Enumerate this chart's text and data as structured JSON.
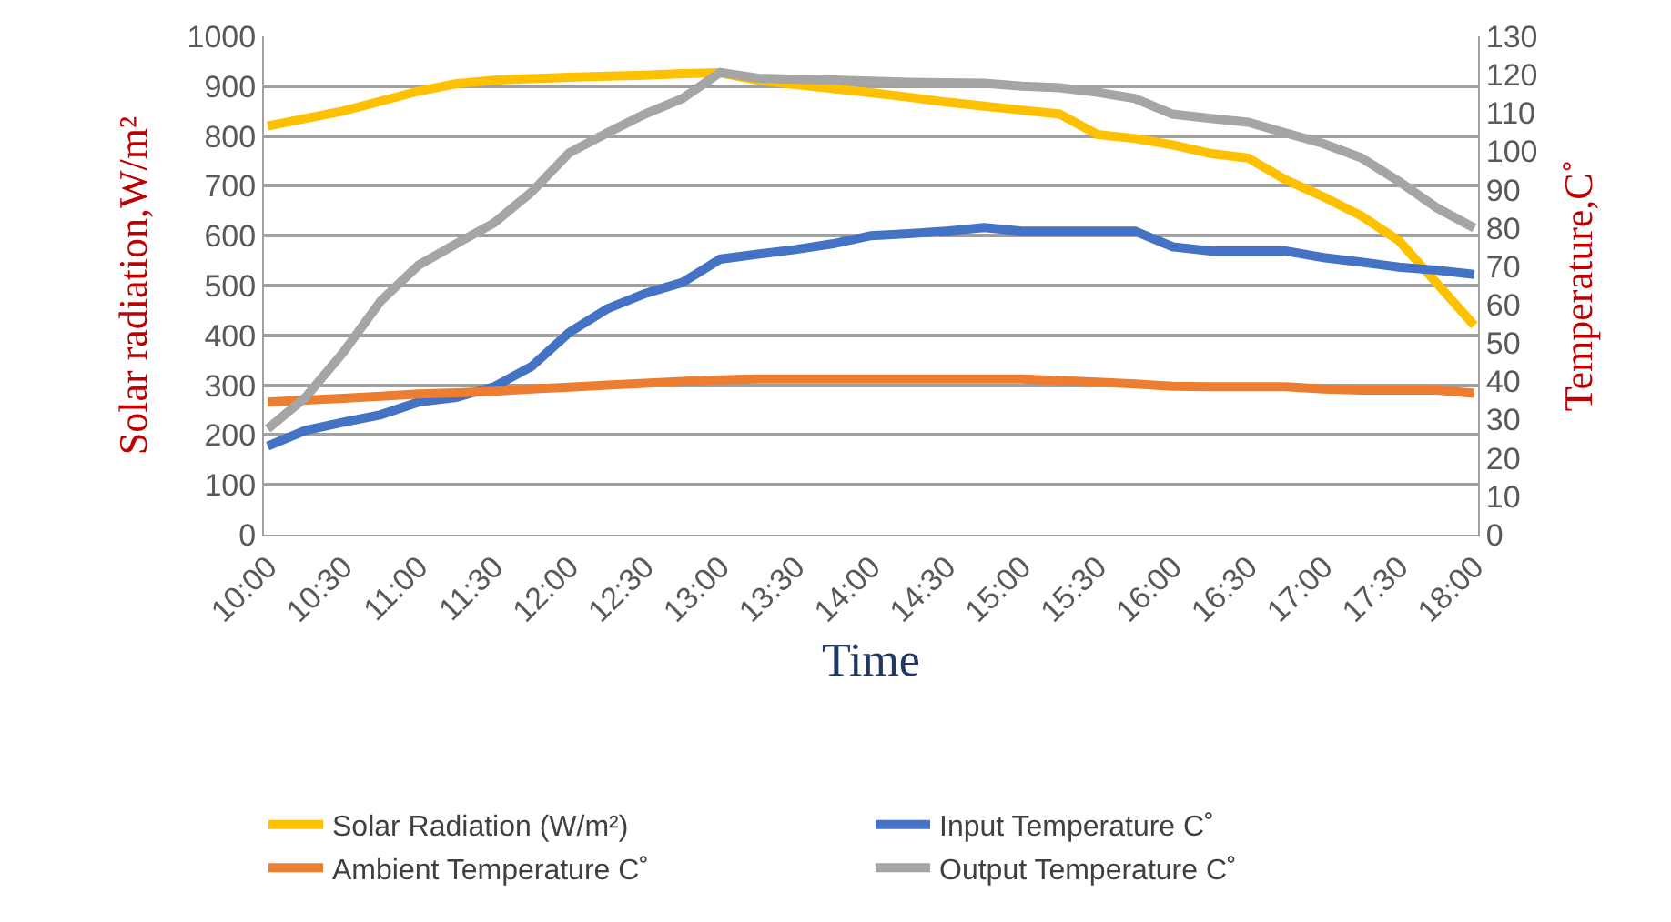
{
  "chart_data": {
    "type": "line",
    "xlabel": "Time",
    "ylabel": "Solar radiation,W/m²",
    "y2label": "Temperature,C˚",
    "categories": [
      "10:00",
      null,
      "10:30",
      null,
      "11:00",
      null,
      "11:30",
      null,
      "12:00",
      null,
      "12:30",
      null,
      "13:00",
      null,
      "13:30",
      null,
      "14:00",
      null,
      "14:30",
      null,
      "15:00",
      null,
      "15:30",
      null,
      "16:00",
      null,
      "16:30",
      null,
      "17:00",
      null,
      "17:30",
      null,
      "18:00"
    ],
    "ylim": [
      0,
      1000
    ],
    "yticks": [
      0,
      100,
      200,
      300,
      400,
      500,
      600,
      700,
      800,
      900,
      1000
    ],
    "y2lim": [
      0,
      130
    ],
    "y2ticks": [
      0,
      10,
      20,
      30,
      40,
      50,
      60,
      70,
      80,
      90,
      100,
      110,
      120,
      130
    ],
    "grid": "y",
    "legend": "bottom",
    "marker": "none",
    "line_style": "solid",
    "series": [
      {
        "name": "Solar Radiation (W/m²)",
        "color": "#ffc000",
        "values": [
          820,
          835,
          850,
          870,
          890,
          905,
          912,
          915,
          918,
          920,
          922,
          925,
          927,
          912,
          903,
          895,
          887,
          878,
          868,
          860,
          852,
          844,
          803,
          795,
          782,
          765,
          756,
          712,
          678,
          640,
          590,
          505,
          420
        ]
      },
      {
        "name": "Input Temperature C˚",
        "color": "#4472c4",
        "axis": "y2",
        "values": [
          23.1,
          27.2,
          29.3,
          31.3,
          34.6,
          35.8,
          38.6,
          43.9,
          52.8,
          58.9,
          62.9,
          65.8,
          71.9,
          73.2,
          74.4,
          75.9,
          78,
          78.5,
          79.2,
          80.1,
          79.2,
          79.2,
          79.2,
          79.2,
          75.1,
          74,
          74,
          74,
          72.3,
          71.1,
          69.8,
          69,
          67.9
        ]
      },
      {
        "name": "Ambient Temperature C˚",
        "color": "#ed7d31",
        "axis": "y2",
        "values": [
          34.6,
          35.1,
          35.6,
          36.1,
          36.7,
          37,
          37.4,
          38,
          38.5,
          39,
          39.5,
          40,
          40.4,
          40.6,
          40.6,
          40.6,
          40.6,
          40.6,
          40.6,
          40.6,
          40.6,
          40.2,
          39.8,
          39.3,
          38.7,
          38.6,
          38.6,
          38.6,
          38,
          37.7,
          37.7,
          37.7,
          36.9
        ]
      },
      {
        "name": "Output Temperature C˚",
        "color": "#a5a5a5",
        "axis": "y2",
        "values": [
          27.6,
          35.8,
          47.5,
          61,
          70.3,
          75.9,
          81.3,
          89.4,
          99.6,
          104.8,
          109.7,
          113.8,
          120.6,
          119.1,
          118.8,
          118.6,
          118.3,
          118,
          117.9,
          117.8,
          117,
          116.6,
          115.4,
          113.8,
          109.7,
          108.6,
          107.6,
          104.8,
          102,
          98.3,
          92.2,
          85.3,
          80
        ]
      }
    ]
  }
}
